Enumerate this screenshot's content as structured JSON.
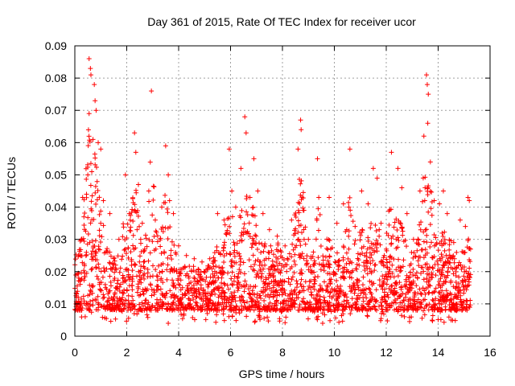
{
  "chart_data": {
    "type": "scatter",
    "title": "Day 361 of 2015, Rate Of TEC Index for receiver ucor",
    "xlabel": "GPS time / hours",
    "ylabel": "ROTI / TECUs",
    "xlim": [
      0,
      16
    ],
    "ylim": [
      0,
      0.09
    ],
    "x_ticks": [
      "0",
      "2",
      "4",
      "6",
      "8",
      "10",
      "12",
      "14",
      "16"
    ],
    "y_ticks": [
      "0",
      "0.01",
      "0.02",
      "0.03",
      "0.04",
      "0.05",
      "0.06",
      "0.07",
      "0.08",
      "0.09"
    ],
    "grid": true,
    "marker": "+",
    "color": "#ff0000",
    "x_data_range": [
      0,
      15.25
    ],
    "series": [
      {
        "name": "ROTI",
        "points": [
          [
            0.15,
            0.018
          ],
          [
            0.3,
            0.043
          ],
          [
            0.55,
            0.086
          ],
          [
            0.6,
            0.083
          ],
          [
            0.62,
            0.081
          ],
          [
            0.75,
            0.078
          ],
          [
            0.78,
            0.073
          ],
          [
            0.82,
            0.07
          ],
          [
            0.55,
            0.069
          ],
          [
            0.7,
            0.061
          ],
          [
            0.9,
            0.06
          ],
          [
            1.0,
            0.058
          ],
          [
            0.5,
            0.05
          ],
          [
            0.45,
            0.044
          ],
          [
            0.35,
            0.037
          ],
          [
            1.1,
            0.042
          ],
          [
            0.25,
            0.03
          ],
          [
            0.4,
            0.006
          ],
          [
            1.2,
            0.026
          ],
          [
            1.35,
            0.038
          ],
          [
            1.5,
            0.024
          ],
          [
            1.7,
            0.03
          ],
          [
            1.95,
            0.05
          ],
          [
            2.1,
            0.038
          ],
          [
            2.3,
            0.063
          ],
          [
            2.35,
            0.057
          ],
          [
            2.45,
            0.047
          ],
          [
            2.6,
            0.035
          ],
          [
            2.85,
            0.045
          ],
          [
            2.95,
            0.076
          ],
          [
            3.1,
            0.036
          ],
          [
            3.35,
            0.04
          ],
          [
            3.5,
            0.059
          ],
          [
            3.6,
            0.05
          ],
          [
            3.65,
            0.042
          ],
          [
            3.8,
            0.038
          ],
          [
            3.6,
            0.004
          ],
          [
            4.0,
            0.028
          ],
          [
            4.3,
            0.025
          ],
          [
            4.6,
            0.024
          ],
          [
            4.9,
            0.023
          ],
          [
            5.2,
            0.024
          ],
          [
            5.5,
            0.038
          ],
          [
            5.75,
            0.036
          ],
          [
            5.95,
            0.058
          ],
          [
            6.05,
            0.045
          ],
          [
            6.2,
            0.04
          ],
          [
            6.4,
            0.052
          ],
          [
            6.55,
            0.068
          ],
          [
            6.6,
            0.063
          ],
          [
            6.75,
            0.043
          ],
          [
            6.9,
            0.055
          ],
          [
            7.05,
            0.045
          ],
          [
            7.25,
            0.038
          ],
          [
            7.5,
            0.033
          ],
          [
            7.8,
            0.031
          ],
          [
            8.1,
            0.028
          ],
          [
            8.35,
            0.036
          ],
          [
            8.6,
            0.058
          ],
          [
            8.7,
            0.067
          ],
          [
            8.72,
            0.064
          ],
          [
            8.8,
            0.039
          ],
          [
            9.0,
            0.03
          ],
          [
            9.35,
            0.055
          ],
          [
            9.4,
            0.043
          ],
          [
            9.55,
            0.004
          ],
          [
            9.8,
            0.043
          ],
          [
            10.1,
            0.035
          ],
          [
            10.35,
            0.041
          ],
          [
            10.6,
            0.058
          ],
          [
            10.8,
            0.034
          ],
          [
            11.05,
            0.045
          ],
          [
            11.3,
            0.041
          ],
          [
            11.5,
            0.052
          ],
          [
            11.65,
            0.049
          ],
          [
            11.8,
            0.035
          ],
          [
            12.0,
            0.027
          ],
          [
            12.2,
            0.057
          ],
          [
            12.45,
            0.052
          ],
          [
            12.6,
            0.046
          ],
          [
            12.8,
            0.038
          ],
          [
            13.05,
            0.03
          ],
          [
            13.3,
            0.045
          ],
          [
            13.45,
            0.062
          ],
          [
            13.55,
            0.081
          ],
          [
            13.58,
            0.078
          ],
          [
            13.62,
            0.075
          ],
          [
            13.6,
            0.066
          ],
          [
            13.7,
            0.054
          ],
          [
            13.85,
            0.042
          ],
          [
            14.05,
            0.041
          ],
          [
            14.2,
            0.045
          ],
          [
            14.35,
            0.038
          ],
          [
            14.6,
            0.029
          ],
          [
            14.85,
            0.036
          ],
          [
            15.05,
            0.034
          ],
          [
            15.15,
            0.043
          ],
          [
            15.2,
            0.042
          ],
          [
            14.5,
            0.005
          ],
          [
            12.7,
            0.006
          ]
        ]
      }
    ]
  }
}
